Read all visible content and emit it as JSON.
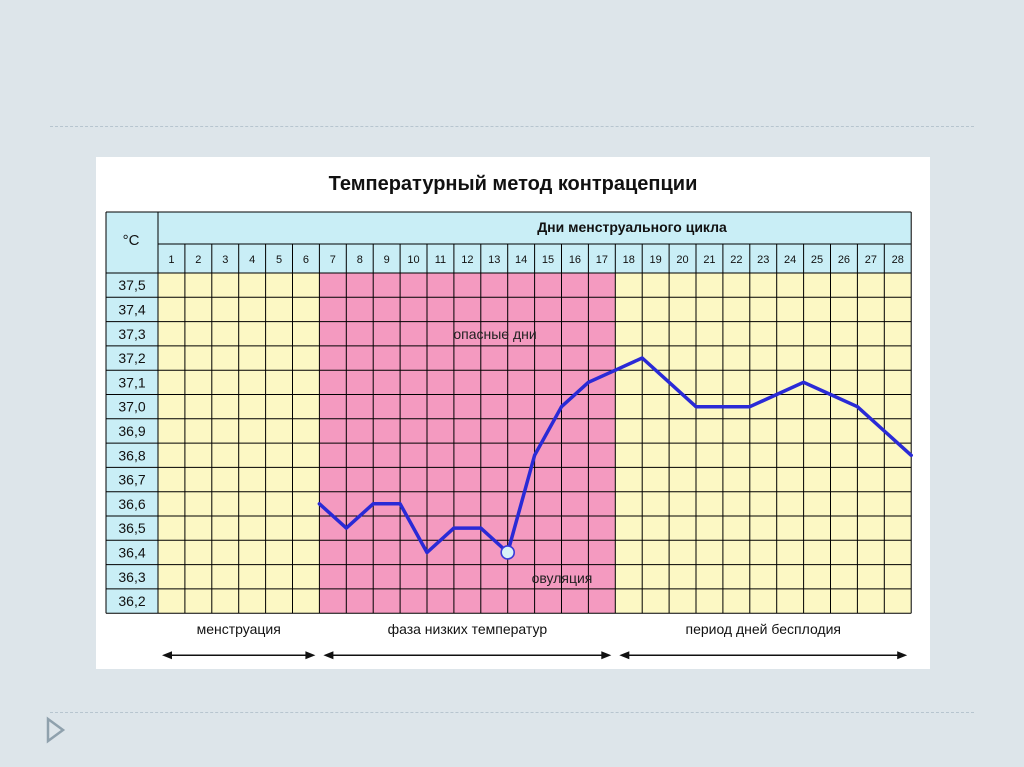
{
  "chart_data": {
    "type": "line",
    "title": "Температурный метод контрацепции",
    "y_unit_label": "°C",
    "x_header": "Дни менструального цикла",
    "days": [
      "1",
      "2",
      "3",
      "4",
      "5",
      "6",
      "7",
      "8",
      "9",
      "10",
      "11",
      "12",
      "13",
      "14",
      "15",
      "16",
      "17",
      "18",
      "19",
      "20",
      "21",
      "22",
      "23",
      "24",
      "25",
      "26",
      "27",
      "28"
    ],
    "y_ticks": [
      "37,5",
      "37,4",
      "37,3",
      "37,2",
      "37,1",
      "37,0",
      "36,9",
      "36,8",
      "36,7",
      "36,6",
      "36,5",
      "36,4",
      "36,3",
      "36,2"
    ],
    "ylim": [
      36.2,
      37.5
    ],
    "series": [
      {
        "x": [
          6,
          7,
          8,
          9,
          10,
          11,
          12,
          13,
          14,
          15,
          16,
          17,
          18,
          19,
          20,
          21,
          22,
          23,
          24,
          25,
          26,
          27,
          28
        ],
        "y": [
          36.6,
          36.5,
          36.6,
          36.6,
          36.4,
          36.5,
          36.5,
          36.4,
          36.8,
          37.0,
          37.1,
          37.15,
          37.2,
          37.1,
          37.0,
          37.0,
          37.0,
          37.05,
          37.1,
          37.05,
          37.0,
          36.9,
          36.8
        ]
      }
    ],
    "ovulation_day": 13,
    "dangerous_days_range": [
      7,
      17
    ],
    "annotations": {
      "danger": "опасные дни",
      "ovulation": "овуляция"
    },
    "phases": [
      {
        "label": "менструация",
        "from": 1,
        "to": 6
      },
      {
        "label": "фаза низких температур",
        "from": 7,
        "to": 17
      },
      {
        "label": "период дней бесплодия",
        "from": 18,
        "to": 28
      }
    ],
    "colors": {
      "header_bg": "#c9eef6",
      "label_bg": "#c9eef6",
      "cell_bg": "#fcf8c4",
      "danger_bg": "#f49ac0",
      "grid": "#000000",
      "line": "#2a2ad6",
      "marker_fill": "#d8f2f8"
    }
  }
}
